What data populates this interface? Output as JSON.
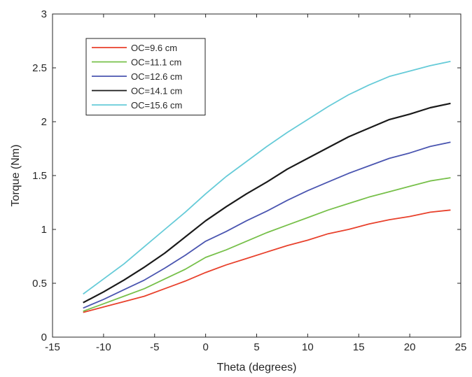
{
  "chart_data": {
    "type": "line",
    "title": "",
    "xlabel": "Theta (degrees)",
    "ylabel": "Torque (Nm)",
    "xlim": [
      -15,
      25
    ],
    "ylim": [
      0,
      3
    ],
    "xticks": [
      -15,
      -10,
      -5,
      0,
      5,
      10,
      15,
      20,
      25
    ],
    "yticks": [
      0,
      0.5,
      1,
      1.5,
      2,
      2.5,
      3
    ],
    "xtick_labels": [
      "-15",
      "-10",
      "-5",
      "0",
      "5",
      "10",
      "15",
      "20",
      "25"
    ],
    "ytick_labels": [
      "0",
      "0.5",
      "1",
      "1.5",
      "2",
      "2.5",
      "3"
    ],
    "grid": false,
    "legend_position": "top-left",
    "x": [
      -12,
      -10,
      -8,
      -6,
      -4,
      -2,
      0,
      2,
      4,
      6,
      8,
      10,
      12,
      14,
      16,
      18,
      20,
      22,
      24
    ],
    "series": [
      {
        "name": "OC=9.6 cm",
        "color": "#e8412c",
        "values": [
          0.23,
          0.28,
          0.33,
          0.38,
          0.45,
          0.52,
          0.6,
          0.67,
          0.73,
          0.79,
          0.85,
          0.9,
          0.96,
          1.0,
          1.05,
          1.09,
          1.12,
          1.16,
          1.18
        ]
      },
      {
        "name": "OC=11.1 cm",
        "color": "#77c04a",
        "values": [
          0.24,
          0.31,
          0.38,
          0.45,
          0.54,
          0.63,
          0.74,
          0.81,
          0.89,
          0.97,
          1.04,
          1.11,
          1.18,
          1.24,
          1.3,
          1.35,
          1.4,
          1.45,
          1.48
        ]
      },
      {
        "name": "OC=12.6 cm",
        "color": "#4a55b0",
        "values": [
          0.27,
          0.35,
          0.44,
          0.53,
          0.64,
          0.76,
          0.89,
          0.98,
          1.08,
          1.17,
          1.27,
          1.36,
          1.44,
          1.52,
          1.59,
          1.66,
          1.71,
          1.77,
          1.81
        ]
      },
      {
        "name": "OC=14.1 cm",
        "color": "#1a1a1a",
        "values": [
          0.32,
          0.42,
          0.53,
          0.65,
          0.78,
          0.93,
          1.08,
          1.21,
          1.33,
          1.44,
          1.56,
          1.66,
          1.76,
          1.86,
          1.94,
          2.02,
          2.07,
          2.13,
          2.17
        ]
      },
      {
        "name": "OC=15.6 cm",
        "color": "#66cbd8",
        "values": [
          0.4,
          0.54,
          0.68,
          0.84,
          1.0,
          1.16,
          1.33,
          1.49,
          1.63,
          1.77,
          1.9,
          2.02,
          2.14,
          2.25,
          2.34,
          2.42,
          2.47,
          2.52,
          2.56
        ]
      }
    ]
  }
}
